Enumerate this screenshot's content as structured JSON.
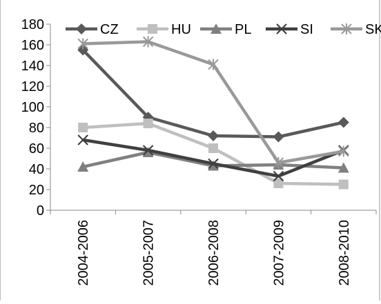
{
  "chart_data": {
    "type": "line",
    "title": "",
    "xlabel": "",
    "ylabel": "",
    "categories": [
      "2004-2006",
      "2005-2007",
      "2006-2008",
      "2007-2009",
      "2008-2010"
    ],
    "ylim": [
      0,
      180
    ],
    "yticks": [
      0,
      20,
      40,
      60,
      80,
      100,
      120,
      140,
      160,
      180
    ],
    "grid": false,
    "legend_position": "top",
    "series": [
      {
        "name": "CZ",
        "color": "#595959",
        "marker": "diamond",
        "values": [
          155,
          90,
          72,
          71,
          85
        ]
      },
      {
        "name": "HU",
        "color": "#bfbfbf",
        "marker": "square",
        "values": [
          80,
          84,
          60,
          26,
          25
        ]
      },
      {
        "name": "PL",
        "color": "#808080",
        "marker": "triangle",
        "values": [
          42,
          56,
          43,
          44,
          41
        ]
      },
      {
        "name": "SI",
        "color": "#404040",
        "marker": "x",
        "values": [
          68,
          58,
          45,
          33,
          58
        ]
      },
      {
        "name": "SK",
        "color": "#999999",
        "marker": "asterisk",
        "values": [
          161,
          163,
          141,
          46,
          57
        ]
      }
    ]
  }
}
